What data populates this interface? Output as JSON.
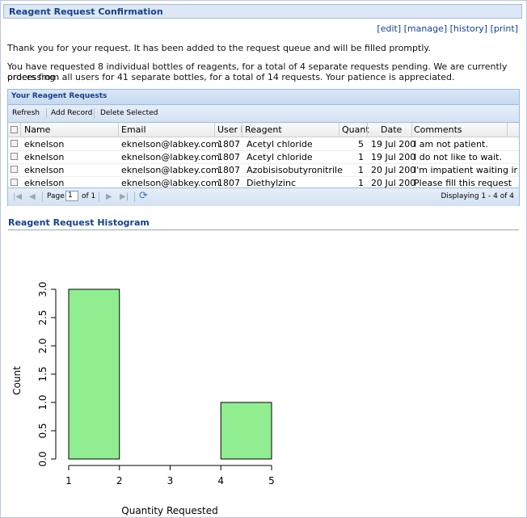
{
  "page": {
    "title": "Reagent Request Confirmation",
    "links": {
      "edit": "[edit]",
      "manage": "[manage]",
      "history": "[history]",
      "print": "[print]"
    },
    "thanks": "Thank you for your request. It has been added to the request queue and will be filled promptly.",
    "summary_line1": "You have requested 8 individual bottles of reagents, for a total of 4 separate requests pending. We are currently processing",
    "summary_line2": "orders from all users for 41 separate bottles, for a total of 14 requests. Your patience is appreciated."
  },
  "grid": {
    "title": "Your Reagent Requests",
    "toolbar": {
      "refresh": "Refresh",
      "add": "Add Record",
      "delete": "Delete Selected"
    },
    "columns": [
      "Name",
      "Email",
      "User I",
      "Reagent",
      "Quant",
      "Date",
      "Comments"
    ],
    "rows": [
      [
        "eknelson",
        "eknelson@labkey.com",
        "1807",
        "Acetyl chloride",
        "5",
        "19 Jul 200",
        "I am not patient."
      ],
      [
        "eknelson",
        "eknelson@labkey.com",
        "1807",
        "Acetyl chloride",
        "1",
        "19 Jul 200",
        "I do not like to wait."
      ],
      [
        "eknelson",
        "eknelson@labkey.com",
        "1807",
        "Azobisisobutyronitrile",
        "1",
        "20 Jul 200",
        "I'm impatient waiting ir"
      ],
      [
        "eknelson",
        "eknelson@labkey.com",
        "1807",
        "Diethylzinc",
        "1",
        "20 Jul 200",
        "Please fill this request"
      ]
    ],
    "pager": {
      "page_label": "Page",
      "page_value": "1",
      "of_label": "of 1",
      "displaying": "Displaying 1 - 4 of 4"
    }
  },
  "histogram": {
    "title": "Reagent Request Histogram"
  },
  "chart_data": {
    "type": "bar",
    "bins": [
      [
        1,
        2
      ],
      [
        2,
        3
      ],
      [
        3,
        4
      ],
      [
        4,
        5
      ]
    ],
    "values": [
      3,
      0,
      0,
      1
    ],
    "xlabel": "Quantity Requested",
    "ylabel": "Count",
    "xticks": [
      "1",
      "2",
      "3",
      "4",
      "5"
    ],
    "yticks": [
      "0.0",
      "0.5",
      "1.0",
      "1.5",
      "2.0",
      "2.5",
      "3.0"
    ],
    "xlim": [
      1,
      5
    ],
    "ylim": [
      0,
      3
    ],
    "bar_color": "#90ee90"
  }
}
